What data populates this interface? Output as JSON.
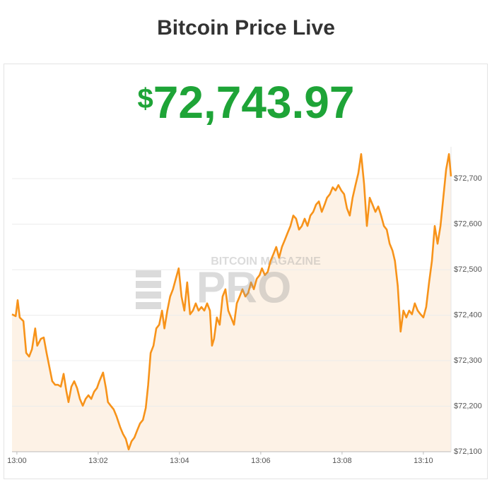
{
  "header": {
    "title": "Bitcoin Price Live"
  },
  "price": {
    "symbol": "$",
    "amount": "72,743.97"
  },
  "watermark": {
    "top": "BITCOIN MAGAZINE",
    "main": "PRO"
  },
  "chart_data": {
    "type": "line",
    "x": [
      -0.12,
      -0.03,
      0.02,
      0.07,
      0.16,
      0.23,
      0.3,
      0.37,
      0.45,
      0.5,
      0.59,
      0.66,
      0.73,
      0.8,
      0.87,
      0.94,
      1.01,
      1.08,
      1.15,
      1.22,
      1.27,
      1.34,
      1.41,
      1.48,
      1.55,
      1.62,
      1.69,
      1.76,
      1.83,
      1.9,
      1.97,
      2.03,
      2.12,
      2.19,
      2.24,
      2.31,
      2.38,
      2.45,
      2.54,
      2.61,
      2.68,
      2.75,
      2.82,
      2.89,
      2.96,
      3.03,
      3.1,
      3.17,
      3.23,
      3.29,
      3.36,
      3.43,
      3.5,
      3.57,
      3.63,
      3.7,
      3.77,
      3.84,
      3.91,
      3.98,
      4.05,
      4.12,
      4.19,
      4.26,
      4.33,
      4.4,
      4.47,
      4.54,
      4.61,
      4.68,
      4.75,
      4.8,
      4.85,
      4.92,
      4.99,
      5.06,
      5.13,
      5.2,
      5.27,
      5.34,
      5.41,
      5.48,
      5.55,
      5.62,
      5.69,
      5.76,
      5.83,
      5.9,
      5.97,
      6.03,
      6.1,
      6.17,
      6.24,
      6.31,
      6.38,
      6.45,
      6.52,
      6.59,
      6.66,
      6.73,
      6.8,
      6.87,
      6.94,
      7.01,
      7.08,
      7.15,
      7.22,
      7.29,
      7.36,
      7.43,
      7.5,
      7.57,
      7.63,
      7.7,
      7.77,
      7.84,
      7.91,
      7.98,
      8.05,
      8.12,
      8.19,
      8.26,
      8.33,
      8.4,
      8.47,
      8.54,
      8.61,
      8.68,
      8.75,
      8.82,
      8.89,
      8.96,
      9.03,
      9.1,
      9.17,
      9.24,
      9.3,
      9.37,
      9.44,
      9.51,
      9.58,
      9.65,
      9.72,
      9.79,
      9.86,
      9.93,
      10.0,
      10.07,
      10.14,
      10.21,
      10.28,
      10.35,
      10.42,
      10.49,
      10.56,
      10.63,
      10.68
    ],
    "series": [
      {
        "color": "#f7931a",
        "fill": "#fdf2e6",
        "values": [
          72402,
          72398,
          72433,
          72395,
          72387,
          72317,
          72309,
          72325,
          72371,
          72333,
          72348,
          72351,
          72317,
          72286,
          72255,
          72247,
          72247,
          72243,
          72271,
          72232,
          72209,
          72243,
          72255,
          72240,
          72216,
          72201,
          72216,
          72224,
          72216,
          72232,
          72240,
          72255,
          72274,
          72240,
          72209,
          72201,
          72193,
          72178,
          72154,
          72139,
          72128,
          72105,
          72123,
          72131,
          72147,
          72162,
          72170,
          72196,
          72247,
          72317,
          72333,
          72371,
          72379,
          72410,
          72371,
          72410,
          72441,
          72457,
          72480,
          72503,
          72441,
          72410,
          72472,
          72402,
          72410,
          72426,
          72410,
          72418,
          72410,
          72426,
          72410,
          72333,
          72348,
          72395,
          72379,
          72441,
          72457,
          72410,
          72395,
          72379,
          72426,
          72441,
          72457,
          72441,
          72449,
          72472,
          72457,
          72480,
          72488,
          72503,
          72488,
          72495,
          72519,
          72534,
          72550,
          72526,
          72550,
          72565,
          72581,
          72596,
          72619,
          72612,
          72588,
          72596,
          72612,
          72596,
          72619,
          72627,
          72643,
          72650,
          72627,
          72643,
          72658,
          72666,
          72681,
          72674,
          72686,
          72674,
          72666,
          72635,
          72619,
          72658,
          72686,
          72712,
          72754,
          72689,
          72596,
          72658,
          72643,
          72627,
          72639,
          72619,
          72596,
          72588,
          72557,
          72542,
          72519,
          72464,
          72364,
          72410,
          72395,
          72410,
          72402,
          72426,
          72410,
          72402,
          72395,
          72418,
          72472,
          72519,
          72596,
          72557,
          72596,
          72658,
          72720,
          72754,
          72705
        ]
      }
    ],
    "xlim": [
      -0.12,
      10.68
    ],
    "xticks": [
      {
        "value": 0,
        "label": "13:00"
      },
      {
        "value": 2,
        "label": "13:02"
      },
      {
        "value": 4,
        "label": "13:04"
      },
      {
        "value": 6,
        "label": "13:06"
      },
      {
        "value": 8,
        "label": "13:08"
      },
      {
        "value": 10,
        "label": "13:10"
      }
    ],
    "ylim": [
      72100,
      72770
    ],
    "yticks": [
      {
        "value": 72100,
        "label": "$72,100"
      },
      {
        "value": 72200,
        "label": "$72,200"
      },
      {
        "value": 72300,
        "label": "$72,300"
      },
      {
        "value": 72400,
        "label": "$72,400"
      },
      {
        "value": 72500,
        "label": "$72,500"
      },
      {
        "value": 72600,
        "label": "$72,600"
      },
      {
        "value": 72700,
        "label": "$72,700"
      }
    ],
    "grid": true
  }
}
